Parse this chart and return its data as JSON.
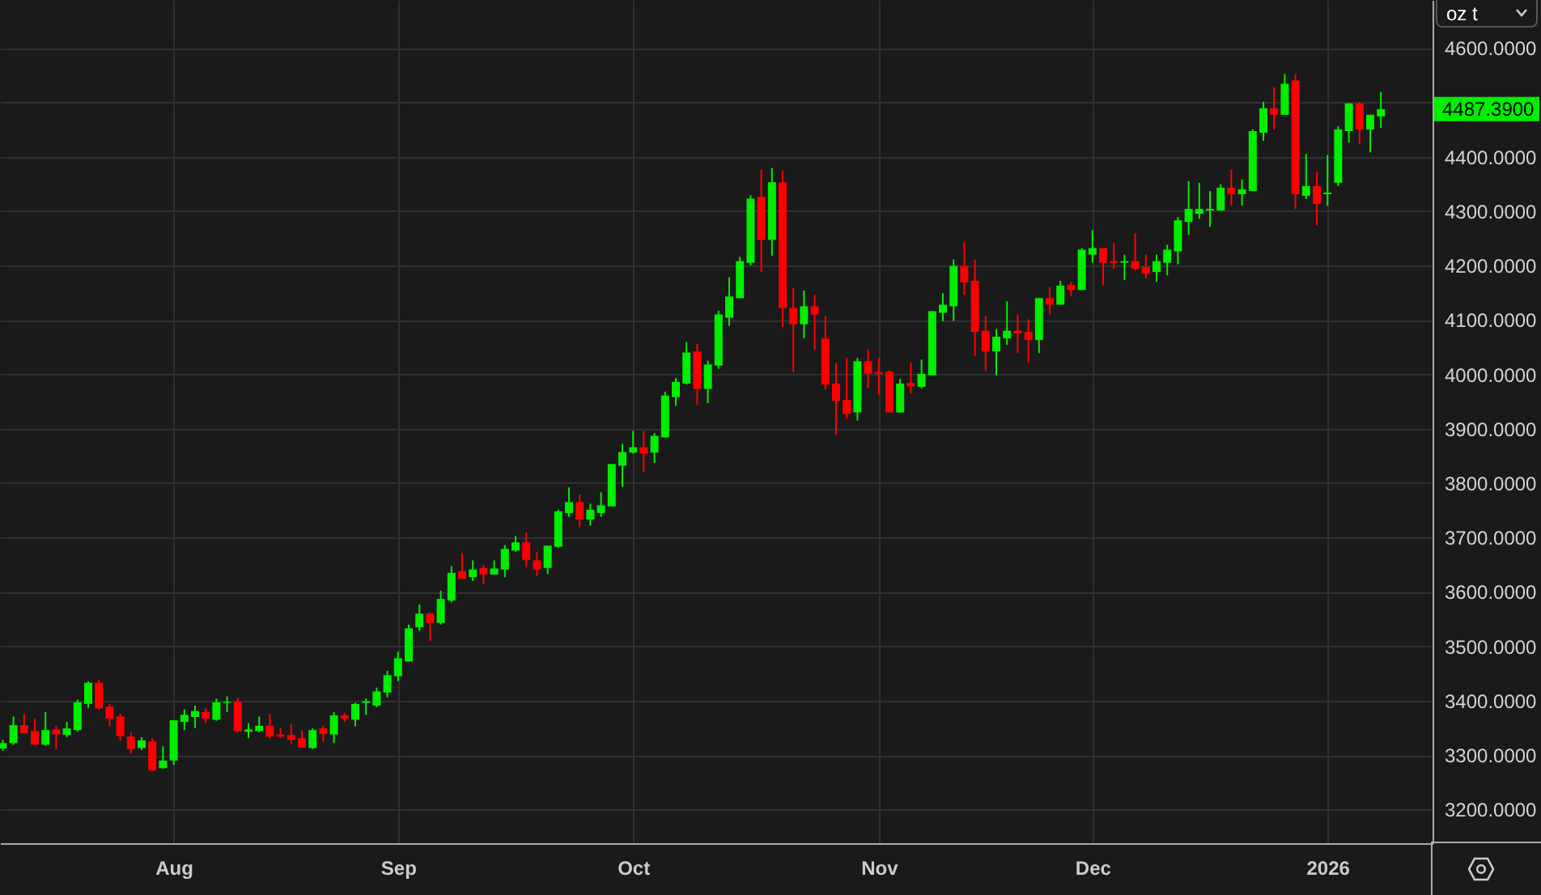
{
  "chart_data": {
    "type": "candlestick",
    "ylabel": "oz t",
    "categories": [
      null,
      null,
      null,
      null,
      null,
      null,
      null,
      null,
      null,
      null,
      null,
      null,
      null,
      null,
      null,
      null,
      "Aug",
      null,
      null,
      null,
      null,
      null,
      null,
      null,
      null,
      null,
      null,
      null,
      null,
      null,
      null,
      null,
      null,
      null,
      null,
      null,
      null,
      "Sep",
      null,
      null,
      null,
      null,
      null,
      null,
      null,
      null,
      null,
      null,
      null,
      null,
      null,
      null,
      null,
      null,
      null,
      null,
      null,
      null,
      null,
      "Oct",
      null,
      null,
      null,
      null,
      null,
      null,
      null,
      null,
      null,
      null,
      null,
      null,
      null,
      null,
      null,
      null,
      null,
      null,
      null,
      null,
      null,
      null,
      "Nov",
      null,
      null,
      null,
      null,
      null,
      null,
      null,
      null,
      null,
      null,
      null,
      null,
      null,
      null,
      null,
      null,
      null,
      null,
      null,
      "Dec",
      null,
      null,
      null,
      null,
      null,
      null,
      null,
      null,
      null,
      null,
      null,
      null,
      null,
      null,
      null,
      null,
      null,
      null,
      null,
      null,
      null,
      "2026",
      null,
      null,
      null,
      null,
      null
    ],
    "ohlc": [
      [
        3312,
        3328,
        3308,
        3322
      ],
      [
        3322,
        3371,
        3319,
        3355
      ],
      [
        3355,
        3376,
        3339,
        3340
      ],
      [
        3344,
        3367,
        3319,
        3319
      ],
      [
        3319,
        3379,
        3317,
        3346
      ],
      [
        3347,
        3354,
        3311,
        3338
      ],
      [
        3337,
        3361,
        3333,
        3349
      ],
      [
        3346,
        3402,
        3343,
        3397
      ],
      [
        3394,
        3436,
        3387,
        3433
      ],
      [
        3433,
        3438,
        3383,
        3386
      ],
      [
        3389,
        3394,
        3353,
        3367
      ],
      [
        3371,
        3376,
        3327,
        3335
      ],
      [
        3334,
        3341,
        3303,
        3311
      ],
      [
        3313,
        3333,
        3309,
        3327
      ],
      [
        3325,
        3331,
        3270,
        3272
      ],
      [
        3276,
        3316,
        3275,
        3290
      ],
      [
        3290,
        3364,
        3282,
        3364
      ],
      [
        3361,
        3384,
        3346,
        3374
      ],
      [
        3370,
        3391,
        3350,
        3381
      ],
      [
        3379,
        3386,
        3359,
        3367
      ],
      [
        3365,
        3404,
        3363,
        3397
      ],
      [
        3396,
        3408,
        3379,
        3398
      ],
      [
        3398,
        3406,
        3342,
        3344
      ],
      [
        3343,
        3359,
        3331,
        3347
      ],
      [
        3344,
        3371,
        3342,
        3354
      ],
      [
        3354,
        3376,
        3331,
        3334
      ],
      [
        3338,
        3350,
        3331,
        3334
      ],
      [
        3337,
        3357,
        3321,
        3328
      ],
      [
        3331,
        3346,
        3313,
        3314
      ],
      [
        3313,
        3349,
        3311,
        3346
      ],
      [
        3349,
        3354,
        3325,
        3339
      ],
      [
        3338,
        3379,
        3322,
        3373
      ],
      [
        3373,
        3378,
        3361,
        3367
      ],
      [
        3365,
        3396,
        3353,
        3394
      ],
      [
        3396,
        3404,
        3374,
        3399
      ],
      [
        3391,
        3424,
        3388,
        3417
      ],
      [
        3415,
        3455,
        3406,
        3447
      ],
      [
        3445,
        3490,
        3436,
        3478
      ],
      [
        3472,
        3540,
        3472,
        3533
      ],
      [
        3535,
        3577,
        3528,
        3560
      ],
      [
        3560,
        3562,
        3510,
        3543
      ],
      [
        3543,
        3602,
        3540,
        3587
      ],
      [
        3584,
        3647,
        3581,
        3635
      ],
      [
        3638,
        3672,
        3624,
        3624
      ],
      [
        3627,
        3658,
        3620,
        3641
      ],
      [
        3644,
        3649,
        3614,
        3632
      ],
      [
        3632,
        3658,
        3632,
        3643
      ],
      [
        3641,
        3686,
        3627,
        3679
      ],
      [
        3676,
        3703,
        3674,
        3691
      ],
      [
        3691,
        3709,
        3645,
        3659
      ],
      [
        3658,
        3673,
        3629,
        3641
      ],
      [
        3644,
        3685,
        3633,
        3685
      ],
      [
        3683,
        3751,
        3681,
        3748
      ],
      [
        3745,
        3792,
        3738,
        3765
      ],
      [
        3765,
        3779,
        3719,
        3733
      ],
      [
        3733,
        3762,
        3722,
        3751
      ],
      [
        3745,
        3783,
        3738,
        3759
      ],
      [
        3757,
        3835,
        3757,
        3835
      ],
      [
        3832,
        3872,
        3793,
        3857
      ],
      [
        3856,
        3896,
        3854,
        3866
      ],
      [
        3866,
        3896,
        3820,
        3854
      ],
      [
        3856,
        3892,
        3837,
        3887
      ],
      [
        3884,
        3968,
        3884,
        3961
      ],
      [
        3958,
        3993,
        3942,
        3986
      ],
      [
        3983,
        4059,
        3981,
        4040
      ],
      [
        4042,
        4056,
        3944,
        3973
      ],
      [
        3973,
        4025,
        3947,
        4018
      ],
      [
        4016,
        4117,
        4010,
        4110
      ],
      [
        4104,
        4178,
        4089,
        4143
      ],
      [
        4140,
        4216,
        4140,
        4208
      ],
      [
        4205,
        4329,
        4200,
        4323
      ],
      [
        4326,
        4376,
        4188,
        4247
      ],
      [
        4247,
        4379,
        4218,
        4353
      ],
      [
        4353,
        4374,
        4087,
        4122
      ],
      [
        4122,
        4159,
        4004,
        4092
      ],
      [
        4092,
        4154,
        4066,
        4125
      ],
      [
        4125,
        4146,
        4045,
        4110
      ],
      [
        4066,
        4107,
        3972,
        3981
      ],
      [
        3983,
        4021,
        3888,
        3951
      ],
      [
        3953,
        4030,
        3918,
        3927
      ],
      [
        3930,
        4030,
        3915,
        4024
      ],
      [
        4024,
        4045,
        3974,
        4001
      ],
      [
        4004,
        4030,
        3962,
        4001
      ],
      [
        4005,
        4007,
        3930,
        3930
      ],
      [
        3930,
        3992,
        3930,
        3983
      ],
      [
        3984,
        4021,
        3965,
        3978
      ],
      [
        3977,
        4027,
        3974,
        4001
      ],
      [
        3998,
        4116,
        3998,
        4116
      ],
      [
        4113,
        4149,
        4098,
        4128
      ],
      [
        4125,
        4211,
        4098,
        4199
      ],
      [
        4199,
        4243,
        4146,
        4169
      ],
      [
        4172,
        4211,
        4033,
        4078
      ],
      [
        4080,
        4107,
        4006,
        4042
      ],
      [
        4042,
        4083,
        3998,
        4069
      ],
      [
        4066,
        4134,
        4054,
        4080
      ],
      [
        4080,
        4110,
        4039,
        4075
      ],
      [
        4078,
        4101,
        4021,
        4063
      ],
      [
        4063,
        4140,
        4039,
        4140
      ],
      [
        4140,
        4160,
        4110,
        4128
      ],
      [
        4128,
        4172,
        4128,
        4163
      ],
      [
        4164,
        4170,
        4143,
        4155
      ],
      [
        4155,
        4232,
        4155,
        4229
      ],
      [
        4220,
        4265,
        4205,
        4232
      ],
      [
        4232,
        4232,
        4164,
        4205
      ],
      [
        4208,
        4241,
        4194,
        4205
      ],
      [
        4205,
        4220,
        4173,
        4208
      ],
      [
        4208,
        4259,
        4191,
        4194
      ],
      [
        4197,
        4220,
        4176,
        4185
      ],
      [
        4188,
        4220,
        4170,
        4208
      ],
      [
        4205,
        4238,
        4182,
        4229
      ],
      [
        4226,
        4289,
        4202,
        4283
      ],
      [
        4280,
        4355,
        4256,
        4304
      ],
      [
        4295,
        4352,
        4286,
        4304
      ],
      [
        4301,
        4337,
        4271,
        4304
      ],
      [
        4301,
        4349,
        4301,
        4343
      ],
      [
        4343,
        4376,
        4310,
        4331
      ],
      [
        4331,
        4358,
        4310,
        4340
      ],
      [
        4337,
        4450,
        4337,
        4447
      ],
      [
        4444,
        4501,
        4429,
        4489
      ],
      [
        4489,
        4528,
        4450,
        4477
      ],
      [
        4477,
        4552,
        4477,
        4534
      ],
      [
        4540,
        4552,
        4304,
        4331
      ],
      [
        4328,
        4405,
        4322,
        4346
      ],
      [
        4346,
        4373,
        4274,
        4313
      ],
      [
        4331,
        4403,
        4310,
        4334
      ],
      [
        4352,
        4456,
        4346,
        4450
      ],
      [
        4447,
        4498,
        4426,
        4498
      ],
      [
        4498,
        4501,
        4423,
        4450
      ],
      [
        4450,
        4477,
        4408,
        4477
      ],
      [
        4474,
        4519,
        4453,
        4487.39
      ]
    ],
    "colors": [
      "#00ee00",
      "#00ee00",
      "#ff0000",
      "#ff0000",
      "#00ee00",
      "#ff0000",
      "#00ee00",
      "#00ee00",
      "#00ee00",
      "#ff0000",
      "#ff0000",
      "#ff0000",
      "#ff0000",
      "#00ee00",
      "#ff0000",
      "#00ee00",
      "#00ee00",
      "#00ee00",
      "#00ee00",
      "#ff0000",
      "#00ee00",
      "#00ee00",
      "#ff0000",
      "#00ee00",
      "#00ee00",
      "#ff0000",
      "#ff0000",
      "#ff0000",
      "#ff0000",
      "#00ee00",
      "#ff0000",
      "#00ee00",
      "#ff0000",
      "#00ee00",
      "#00ee00",
      "#00ee00",
      "#00ee00",
      "#00ee00",
      "#00ee00",
      "#00ee00",
      "#ff0000",
      "#00ee00",
      "#00ee00",
      "#ff0000",
      "#00ee00",
      "#ff0000",
      "#00ee00",
      "#00ee00",
      "#00ee00",
      "#ff0000",
      "#ff0000",
      "#00ee00",
      "#00ee00",
      "#00ee00",
      "#ff0000",
      "#00ee00",
      "#00ee00",
      "#00ee00",
      "#00ee00",
      "#00ee00",
      "#ff0000",
      "#00ee00",
      "#00ee00",
      "#00ee00",
      "#00ee00",
      "#ff0000",
      "#00ee00",
      "#00ee00",
      "#00ee00",
      "#00ee00",
      "#00ee00",
      "#ff0000",
      "#00ee00",
      "#ff0000",
      "#ff0000",
      "#00ee00",
      "#ff0000",
      "#ff0000",
      "#ff0000",
      "#ff0000",
      "#00ee00",
      "#ff0000",
      "#ff0000",
      "#ff0000",
      "#00ee00",
      "#ff0000",
      "#00ee00",
      "#00ee00",
      "#00ee00",
      "#00ee00",
      "#ff0000",
      "#ff0000",
      "#ff0000",
      "#00ee00",
      "#00ee00",
      "#ff0000",
      "#ff0000",
      "#00ee00",
      "#ff0000",
      "#00ee00",
      "#ff0000",
      "#00ee00",
      "#00ee00",
      "#ff0000",
      "#ff0000",
      "#00ee00",
      "#ff0000",
      "#ff0000",
      "#00ee00",
      "#00ee00",
      "#00ee00",
      "#00ee00",
      "#00ee00",
      "#00ee00",
      "#00ee00",
      "#ff0000",
      "#00ee00",
      "#00ee00",
      "#00ee00",
      "#ff0000",
      "#00ee00",
      "#ff0000",
      "#00ee00",
      "#ff0000",
      "#00ee00",
      "#00ee00",
      "#00ee00",
      "#ff0000",
      "#00ee00",
      "#00ee00"
    ],
    "ylim": [
      3138,
      4688
    ],
    "yticks": [
      {
        "value": 3200,
        "label": "3200.0000"
      },
      {
        "value": 3300,
        "label": "3300.0000"
      },
      {
        "value": 3400,
        "label": "3400.0000"
      },
      {
        "value": 3500,
        "label": "3500.0000"
      },
      {
        "value": 3600,
        "label": "3600.0000"
      },
      {
        "value": 3700,
        "label": "3700.0000"
      },
      {
        "value": 3800,
        "label": "3800.0000"
      },
      {
        "value": 3900,
        "label": "3900.0000"
      },
      {
        "value": 4000,
        "label": "4000.0000"
      },
      {
        "value": 4100,
        "label": "4100.0000"
      },
      {
        "value": 4200,
        "label": "4200.0000"
      },
      {
        "value": 4300,
        "label": "4300.0000"
      },
      {
        "value": 4400,
        "label": "4400.0000"
      },
      {
        "value": 4500,
        "label": null
      },
      {
        "value": 4600,
        "label": "4600.0000"
      }
    ],
    "grid": true,
    "annotations": [
      "4487.3900"
    ]
  }
}
